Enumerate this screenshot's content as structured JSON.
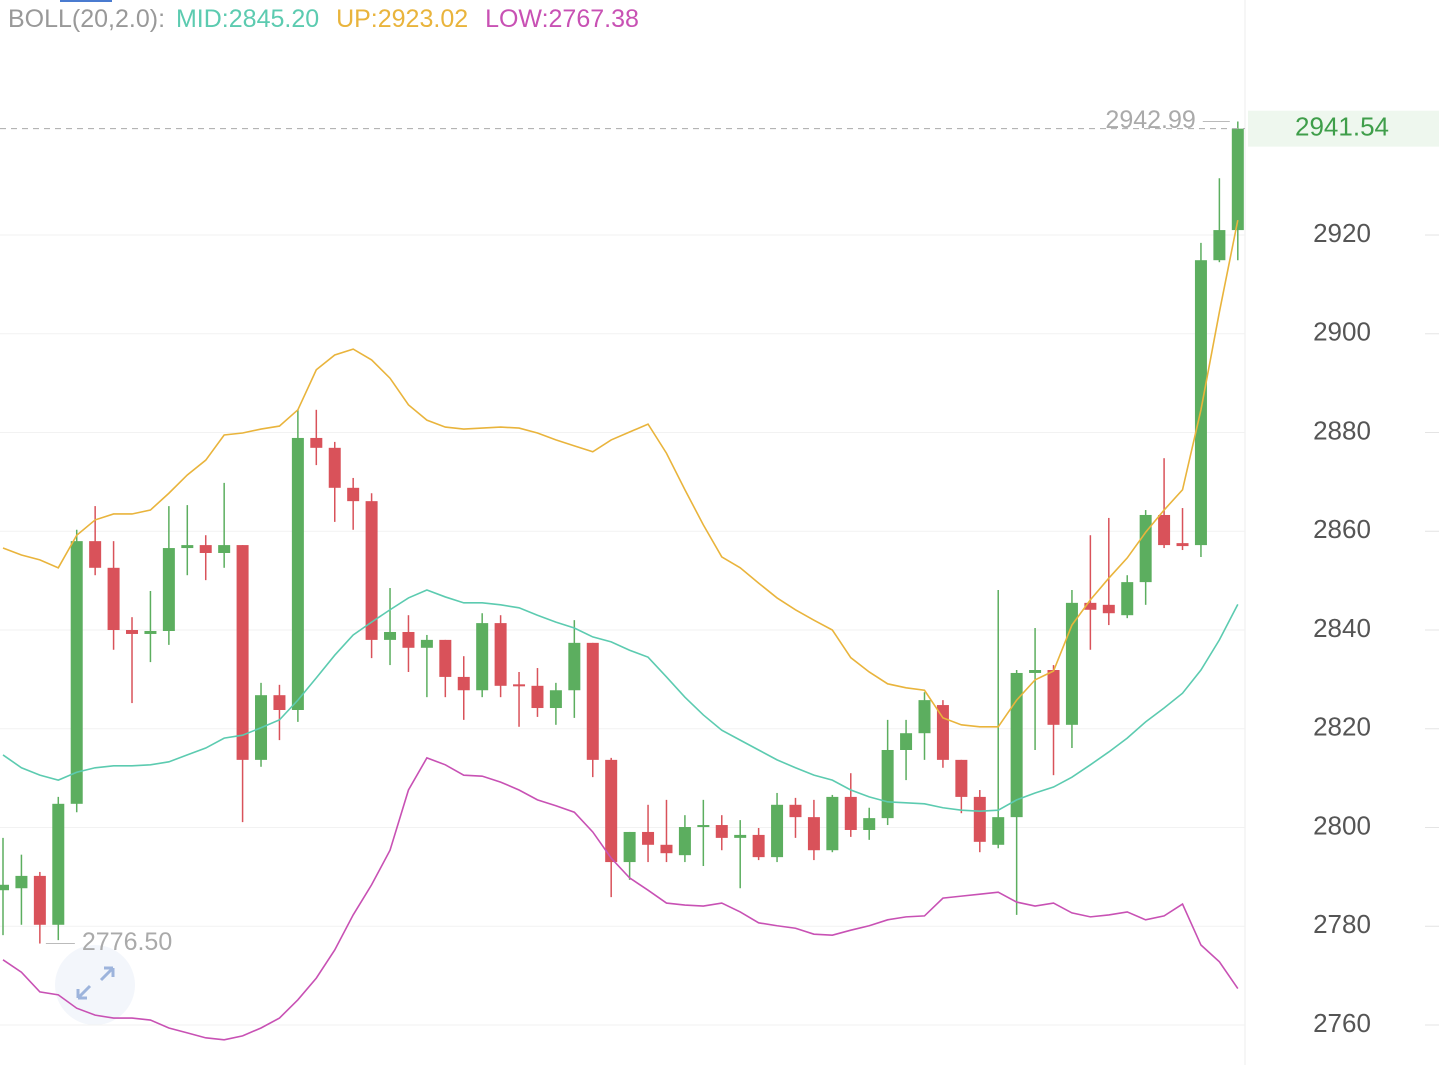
{
  "chart_data": {
    "type": "candlestick",
    "indicator": "BOLL(20,2.0):",
    "up_color": "#5cae5f",
    "down_color": "#d9525a",
    "ylim": [
      2751.9,
      2967.6
    ],
    "yticks": [
      2760,
      2780,
      2800,
      2820,
      2840,
      2860,
      2880,
      2900,
      2920
    ],
    "grid": true,
    "low_label": "2776.50",
    "open": [
      2787.3,
      2787.7,
      2790.2,
      2780.3,
      2804.8,
      2858,
      2852.6,
      2840,
      2839.2,
      2839.8,
      2856.6,
      2857.2,
      2855.6,
      2857.2,
      2813.7,
      2826.8,
      2823.8,
      2878.9,
      2876.9,
      2868.8,
      2866.1,
      2838,
      2839.6,
      2836.4,
      2838,
      2830.5,
      2827.8,
      2841.4,
      2829,
      2828.7,
      2824.2,
      2827.8,
      2837.4,
      2813.7,
      2793,
      2799.1,
      2796.5,
      2794.4,
      2800.1,
      2800.5,
      2797.9,
      2798.5,
      2794,
      2804.6,
      2802.1,
      2795.4,
      2806.2,
      2799.5,
      2801.9,
      2815.7,
      2819.1,
      2824.8,
      2813.7,
      2806.2,
      2796.5,
      2802.1,
      2831.3,
      2831.9,
      2820.8,
      2845.5,
      2845.1,
      2843,
      2849.7,
      2863.3,
      2857.6,
      2857.2,
      2914.9,
      2921
    ],
    "high": [
      2797.9,
      2794.5,
      2791,
      2806.2,
      2860.3,
      2865.1,
      2858,
      2842.6,
      2847.9,
      2865.1,
      2865.3,
      2859.2,
      2869.8,
      2857.2,
      2829.3,
      2828.9,
      2884.6,
      2884.6,
      2878.1,
      2870.8,
      2867.7,
      2848.5,
      2843,
      2839,
      2838,
      2834.7,
      2843.4,
      2843,
      2831.5,
      2832.3,
      2829.3,
      2842,
      2837.4,
      2814.1,
      2799.1,
      2804.6,
      2805.6,
      2802.5,
      2805.6,
      2802.5,
      2801.5,
      2799.9,
      2807,
      2806,
      2805.6,
      2806.6,
      2811,
      2804,
      2821.8,
      2821.8,
      2827.4,
      2825.8,
      2813.7,
      2807.6,
      2848.1,
      2831.9,
      2840.4,
      2832.9,
      2848.1,
      2859.2,
      2862.7,
      2851.1,
      2864.3,
      2874.8,
      2864.7,
      2918.4,
      2931.5,
      2942.99
    ],
    "low": [
      2778.2,
      2780.3,
      2776.5,
      2777.2,
      2803.1,
      2851.1,
      2836,
      2825.2,
      2833.5,
      2837,
      2851.1,
      2850.1,
      2852.6,
      2801.1,
      2812.3,
      2817.7,
      2821.4,
      2873.4,
      2861.9,
      2860.3,
      2834.3,
      2832.9,
      2831.5,
      2826.4,
      2826.4,
      2821.8,
      2826.4,
      2826.4,
      2820.4,
      2822.4,
      2820.8,
      2822.2,
      2810.2,
      2785.9,
      2789.4,
      2793,
      2793,
      2793,
      2792.2,
      2795.4,
      2787.7,
      2793.4,
      2793,
      2797.9,
      2793.4,
      2795,
      2798.1,
      2797.5,
      2800.5,
      2809.6,
      2813.7,
      2812.1,
      2802.9,
      2795,
      2795.8,
      2782.3,
      2815.7,
      2810.6,
      2816.1,
      2836,
      2841,
      2842.4,
      2845.1,
      2856.6,
      2856.2,
      2854.8,
      2914.5,
      2914.9
    ],
    "close": [
      2788.4,
      2790.2,
      2780.3,
      2804.8,
      2858,
      2852.6,
      2840,
      2839.2,
      2839.8,
      2856.6,
      2857.2,
      2855.6,
      2857.2,
      2813.7,
      2826.8,
      2823.8,
      2878.9,
      2876.9,
      2868.8,
      2866.1,
      2838,
      2839.6,
      2836.4,
      2838,
      2830.5,
      2827.8,
      2841.4,
      2828.7,
      2828.7,
      2824.2,
      2827.8,
      2837.4,
      2813.7,
      2793,
      2799.1,
      2796.5,
      2794.8,
      2800.1,
      2800.5,
      2797.9,
      2798.5,
      2794,
      2804.6,
      2802.1,
      2795.4,
      2806.2,
      2799.5,
      2801.9,
      2815.7,
      2819.1,
      2825.8,
      2813.7,
      2806.2,
      2797.1,
      2802.1,
      2831.3,
      2831.9,
      2820.8,
      2845.5,
      2844.1,
      2843.4,
      2849.7,
      2863.3,
      2857.2,
      2857,
      2914.9,
      2921,
      2941.54
    ],
    "series": [
      {
        "name": "MID:2845.20",
        "color": "#5ccbb0",
        "values": [
          2814.7,
          2812.1,
          2810.6,
          2809.6,
          2811.2,
          2812.1,
          2812.5,
          2812.5,
          2812.7,
          2813.3,
          2814.7,
          2816.1,
          2818.1,
          2818.7,
          2820.2,
          2821.8,
          2825.8,
          2830.3,
          2834.9,
          2839,
          2841.6,
          2844.1,
          2846.5,
          2848.1,
          2846.7,
          2845.5,
          2845.5,
          2845.1,
          2844.5,
          2843,
          2841.6,
          2840.4,
          2838.6,
          2837.6,
          2835.9,
          2834.5,
          2830.5,
          2826.4,
          2822.8,
          2819.7,
          2817.7,
          2815.7,
          2813.7,
          2812.1,
          2810.6,
          2809.6,
          2807.6,
          2806.2,
          2805.2,
          2805,
          2804.8,
          2804,
          2803.5,
          2803.3,
          2803.5,
          2805.6,
          2807,
          2808.2,
          2810.2,
          2812.7,
          2815.3,
          2818.1,
          2821.4,
          2824.2,
          2827.2,
          2831.9,
          2838,
          2845.2
        ]
      },
      {
        "name": "UP:2923.02",
        "color": "#e9b43c",
        "values": [
          2856.6,
          2855.2,
          2854.2,
          2852.6,
          2859.2,
          2862.3,
          2863.5,
          2863.5,
          2864.3,
          2867.7,
          2871.4,
          2874.4,
          2879.5,
          2879.9,
          2880.7,
          2881.3,
          2884.6,
          2892.7,
          2895.7,
          2896.9,
          2894.7,
          2891,
          2885.6,
          2882.5,
          2881.1,
          2880.7,
          2880.9,
          2881.1,
          2880.9,
          2879.9,
          2878.5,
          2877.3,
          2876.1,
          2878.5,
          2880.1,
          2881.7,
          2875.8,
          2868.4,
          2861.3,
          2854.8,
          2852.6,
          2849.5,
          2846.5,
          2844.1,
          2842,
          2840,
          2834.4,
          2831.5,
          2829.1,
          2828.3,
          2827.8,
          2822.2,
          2820.8,
          2820.4,
          2820.4,
          2825.8,
          2829.9,
          2831.7,
          2841,
          2846.1,
          2850.5,
          2854.6,
          2859.8,
          2864.3,
          2868.4,
          2884.6,
          2904.4,
          2923.02
        ]
      },
      {
        "name": "LOW:2767.38",
        "color": "#c851b4",
        "values": [
          2773.2,
          2770.7,
          2766.7,
          2766.1,
          2763.4,
          2762,
          2761.4,
          2761.4,
          2761,
          2759.4,
          2758.4,
          2757.4,
          2757,
          2757.8,
          2759.4,
          2761.4,
          2765.1,
          2769.5,
          2775.2,
          2782.3,
          2788.4,
          2795.4,
          2807.6,
          2814.1,
          2812.7,
          2810.6,
          2810.4,
          2809.2,
          2807.6,
          2805.6,
          2804.4,
          2803.1,
          2799.1,
          2793.8,
          2789.8,
          2787.3,
          2784.7,
          2784.3,
          2784.1,
          2784.7,
          2782.9,
          2780.7,
          2780.1,
          2779.6,
          2778.4,
          2778.2,
          2779.2,
          2780.1,
          2781.3,
          2781.9,
          2782.1,
          2785.7,
          2786.1,
          2786.5,
          2786.9,
          2784.9,
          2784.1,
          2784.7,
          2782.7,
          2781.9,
          2782.3,
          2782.9,
          2781.3,
          2782.1,
          2784.5,
          2776.2,
          2772.8,
          2767.38
        ]
      }
    ]
  }
}
